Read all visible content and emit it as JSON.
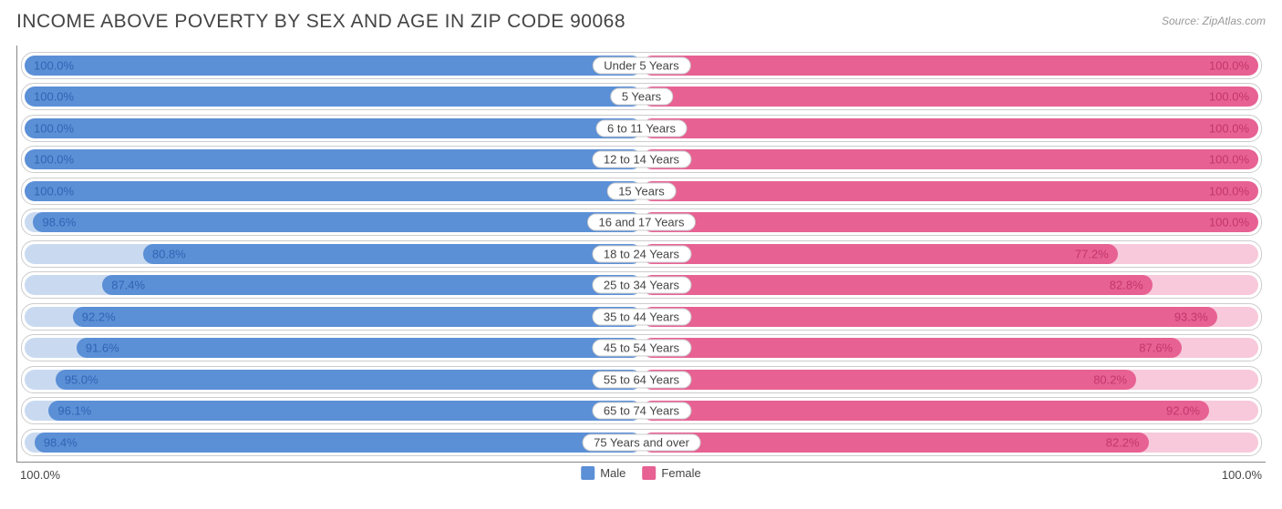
{
  "title": "INCOME ABOVE POVERTY BY SEX AND AGE IN ZIP CODE 90068",
  "source": "Source: ZipAtlas.com",
  "chart": {
    "type": "diverging-bar",
    "male_color": "#5b8fd6",
    "female_color": "#e76193",
    "male_light": "#c9daf0",
    "female_light": "#f7c9da",
    "border_color": "#cccccc",
    "background": "#ffffff",
    "axis": {
      "left": "100.0%",
      "right": "100.0%"
    },
    "legend": [
      {
        "label": "Male",
        "color": "#5b8fd6"
      },
      {
        "label": "Female",
        "color": "#e76193"
      }
    ],
    "rows": [
      {
        "category": "Under 5 Years",
        "male": 100.0,
        "female": 100.0
      },
      {
        "category": "5 Years",
        "male": 100.0,
        "female": 100.0
      },
      {
        "category": "6 to 11 Years",
        "male": 100.0,
        "female": 100.0
      },
      {
        "category": "12 to 14 Years",
        "male": 100.0,
        "female": 100.0
      },
      {
        "category": "15 Years",
        "male": 100.0,
        "female": 100.0
      },
      {
        "category": "16 and 17 Years",
        "male": 98.6,
        "female": 100.0
      },
      {
        "category": "18 to 24 Years",
        "male": 80.8,
        "female": 77.2
      },
      {
        "category": "25 to 34 Years",
        "male": 87.4,
        "female": 82.8
      },
      {
        "category": "35 to 44 Years",
        "male": 92.2,
        "female": 93.3
      },
      {
        "category": "45 to 54 Years",
        "male": 91.6,
        "female": 87.6
      },
      {
        "category": "55 to 64 Years",
        "male": 95.0,
        "female": 80.2
      },
      {
        "category": "65 to 74 Years",
        "male": 96.1,
        "female": 92.0
      },
      {
        "category": "75 Years and over",
        "male": 98.4,
        "female": 82.2
      }
    ]
  }
}
